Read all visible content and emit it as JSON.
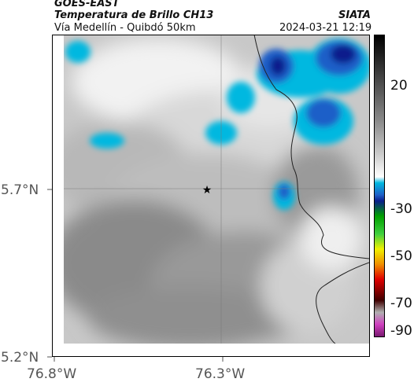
{
  "header": {
    "satellite": "GOES-EAST",
    "product": "Temperatura de Brillo CH13",
    "route": "Vía Medellín - Quibdó 50km",
    "agency": "SIATA",
    "timestamp": "2024-03-21 12:19"
  },
  "map": {
    "y_axis_labels": [
      "5.7°N",
      "5.2°N"
    ],
    "x_axis_labels": [
      "76.8°W",
      "76.3°W"
    ],
    "marker": "star"
  },
  "colorbar": {
    "tick_labels": [
      "20",
      "-30",
      "-50",
      "-70",
      "-90"
    ],
    "colors": [
      "#000000",
      "#3a3a3a",
      "#888888",
      "#cfcfcf",
      "#ffffff",
      "#00b8e0",
      "#1f5fc8",
      "#0a1e8c",
      "#00a000",
      "#40d040",
      "#f0f000",
      "#f09000",
      "#e00000",
      "#400000",
      "#b0b0b0",
      "#d040c0",
      "#7a1a70"
    ]
  }
}
